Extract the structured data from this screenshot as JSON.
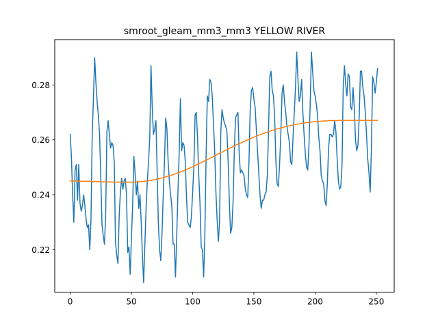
{
  "chart_data": {
    "type": "line",
    "title": "smroot_gleam_mm3_mm3 YELLOW RIVER",
    "xlabel": "",
    "ylabel": "",
    "xlim": [
      -12.6,
      264.6
    ],
    "ylim": [
      0.2045,
      0.2965
    ],
    "xticks": [
      0,
      50,
      100,
      150,
      200,
      250
    ],
    "yticks": [
      0.22,
      0.24,
      0.26,
      0.28
    ],
    "ytick_labels": [
      "0.22",
      "0.24",
      "0.26",
      "0.28"
    ],
    "grid": false,
    "legend": "none",
    "series": [
      {
        "color": "#1f77b4",
        "x_start": 0,
        "x_step": 1,
        "values": [
          0.262,
          0.254,
          0.24,
          0.23,
          0.249,
          0.251,
          0.238,
          0.251,
          0.237,
          0.234,
          0.236,
          0.24,
          0.236,
          0.231,
          0.228,
          0.229,
          0.22,
          0.231,
          0.262,
          0.275,
          0.29,
          0.281,
          0.274,
          0.269,
          0.262,
          0.246,
          0.229,
          0.225,
          0.222,
          0.233,
          0.263,
          0.267,
          0.262,
          0.257,
          0.259,
          0.258,
          0.252,
          0.223,
          0.218,
          0.215,
          0.232,
          0.241,
          0.246,
          0.242,
          0.245,
          0.246,
          0.24,
          0.219,
          0.221,
          0.211,
          0.224,
          0.236,
          0.254,
          0.248,
          0.24,
          0.245,
          0.235,
          0.24,
          0.23,
          0.218,
          0.208,
          0.222,
          0.235,
          0.245,
          0.252,
          0.261,
          0.287,
          0.272,
          0.262,
          0.264,
          0.267,
          0.249,
          0.23,
          0.22,
          0.216,
          0.226,
          0.24,
          0.252,
          0.268,
          0.264,
          0.252,
          0.245,
          0.24,
          0.236,
          0.222,
          0.222,
          0.21,
          0.225,
          0.241,
          0.255,
          0.275,
          0.256,
          0.259,
          0.258,
          0.252,
          0.239,
          0.23,
          0.229,
          0.228,
          0.232,
          0.241,
          0.25,
          0.269,
          0.27,
          0.261,
          0.247,
          0.237,
          0.221,
          0.22,
          0.21,
          0.226,
          0.254,
          0.276,
          0.274,
          0.282,
          0.281,
          0.276,
          0.266,
          0.256,
          0.241,
          0.231,
          0.223,
          0.23,
          0.263,
          0.271,
          0.268,
          0.266,
          0.265,
          0.263,
          0.252,
          0.237,
          0.226,
          0.228,
          0.237,
          0.255,
          0.268,
          0.269,
          0.27,
          0.255,
          0.248,
          0.249,
          0.248,
          0.247,
          0.242,
          0.24,
          0.239,
          0.252,
          0.271,
          0.278,
          0.279,
          0.275,
          0.272,
          0.264,
          0.256,
          0.248,
          0.24,
          0.235,
          0.238,
          0.238,
          0.24,
          0.241,
          0.247,
          0.264,
          0.283,
          0.285,
          0.278,
          0.276,
          0.268,
          0.252,
          0.244,
          0.243,
          0.251,
          0.262,
          0.277,
          0.28,
          0.274,
          0.27,
          0.265,
          0.262,
          0.259,
          0.252,
          0.251,
          0.261,
          0.27,
          0.279,
          0.292,
          0.282,
          0.274,
          0.276,
          0.282,
          0.27,
          0.262,
          0.255,
          0.25,
          0.249,
          0.258,
          0.273,
          0.292,
          0.285,
          0.278,
          0.276,
          0.273,
          0.269,
          0.261,
          0.256,
          0.247,
          0.245,
          0.244,
          0.238,
          0.236,
          0.244,
          0.257,
          0.262,
          0.262,
          0.261,
          0.262,
          0.267,
          0.263,
          0.253,
          0.245,
          0.242,
          0.243,
          0.251,
          0.28,
          0.287,
          0.28,
          0.276,
          0.284,
          0.283,
          0.272,
          0.271,
          0.279,
          0.272,
          0.26,
          0.256,
          0.258,
          0.268,
          0.285,
          0.285,
          0.279,
          0.276,
          0.27,
          0.262,
          0.253,
          0.248,
          0.241,
          0.257,
          0.283,
          0.281,
          0.277,
          0.281,
          0.286
        ]
      },
      {
        "color": "#ff7f0e",
        "x_start": 0,
        "x_step": 1,
        "values": [
          0.245,
          0.245,
          0.245,
          0.245,
          0.245,
          0.245,
          0.245,
          0.2449,
          0.2449,
          0.2449,
          0.2449,
          0.2449,
          0.2449,
          0.2449,
          0.2449,
          0.2449,
          0.2449,
          0.2449,
          0.2448,
          0.2448,
          0.2448,
          0.2448,
          0.2448,
          0.2448,
          0.2448,
          0.2447,
          0.2447,
          0.2447,
          0.2447,
          0.2447,
          0.2447,
          0.2447,
          0.2447,
          0.2446,
          0.2446,
          0.2446,
          0.2446,
          0.2446,
          0.2446,
          0.2446,
          0.2446,
          0.2446,
          0.2446,
          0.2446,
          0.2446,
          0.2446,
          0.2446,
          0.2446,
          0.2446,
          0.2446,
          0.2446,
          0.2446,
          0.2446,
          0.2446,
          0.2446,
          0.2447,
          0.2447,
          0.2447,
          0.2448,
          0.2448,
          0.2449,
          0.2449,
          0.245,
          0.245,
          0.2451,
          0.2452,
          0.2452,
          0.2453,
          0.2454,
          0.2455,
          0.2456,
          0.2457,
          0.2458,
          0.2459,
          0.246,
          0.2461,
          0.2462,
          0.2464,
          0.2465,
          0.2466,
          0.2468,
          0.2469,
          0.247,
          0.2472,
          0.2473,
          0.2475,
          0.2476,
          0.2478,
          0.248,
          0.2481,
          0.2483,
          0.2485,
          0.2487,
          0.2488,
          0.249,
          0.2492,
          0.2494,
          0.2496,
          0.2498,
          0.25,
          0.2502,
          0.2504,
          0.2506,
          0.2508,
          0.2511,
          0.2513,
          0.2515,
          0.2517,
          0.2519,
          0.2521,
          0.2524,
          0.2526,
          0.2528,
          0.253,
          0.2533,
          0.2535,
          0.2537,
          0.2539,
          0.2542,
          0.2544,
          0.2546,
          0.2549,
          0.2551,
          0.2553,
          0.2555,
          0.2558,
          0.256,
          0.2562,
          0.2564,
          0.2567,
          0.2569,
          0.2571,
          0.2573,
          0.2575,
          0.2577,
          0.258,
          0.2582,
          0.2584,
          0.2586,
          0.2588,
          0.259,
          0.2592,
          0.2594,
          0.2596,
          0.2598,
          0.26,
          0.2602,
          0.2604,
          0.2606,
          0.2608,
          0.261,
          0.2611,
          0.2613,
          0.2615,
          0.2617,
          0.2618,
          0.262,
          0.2622,
          0.2623,
          0.2625,
          0.2627,
          0.2628,
          0.263,
          0.2631,
          0.2633,
          0.2634,
          0.2636,
          0.2637,
          0.2638,
          0.264,
          0.2641,
          0.2642,
          0.2643,
          0.2645,
          0.2646,
          0.2647,
          0.2648,
          0.2649,
          0.265,
          0.2651,
          0.2652,
          0.2653,
          0.2654,
          0.2655,
          0.2656,
          0.2657,
          0.2658,
          0.2658,
          0.2659,
          0.266,
          0.2661,
          0.2661,
          0.2662,
          0.2663,
          0.2663,
          0.2664,
          0.2664,
          0.2665,
          0.2665,
          0.2666,
          0.2666,
          0.2667,
          0.2667,
          0.2667,
          0.2668,
          0.2668,
          0.2668,
          0.2669,
          0.2669,
          0.2669,
          0.2669,
          0.267,
          0.267,
          0.267,
          0.267,
          0.267,
          0.267,
          0.267,
          0.267,
          0.2671,
          0.2671,
          0.2671,
          0.2671,
          0.2671,
          0.2671,
          0.2671,
          0.2671,
          0.2671,
          0.2671,
          0.2671,
          0.2671,
          0.2671,
          0.2671,
          0.2671,
          0.2671,
          0.2671,
          0.2671,
          0.2671,
          0.2671,
          0.2671,
          0.2671,
          0.2671,
          0.2671,
          0.2671,
          0.2671,
          0.2671,
          0.2671,
          0.2671,
          0.2671,
          0.2671,
          0.2671,
          0.2671
        ]
      }
    ]
  }
}
